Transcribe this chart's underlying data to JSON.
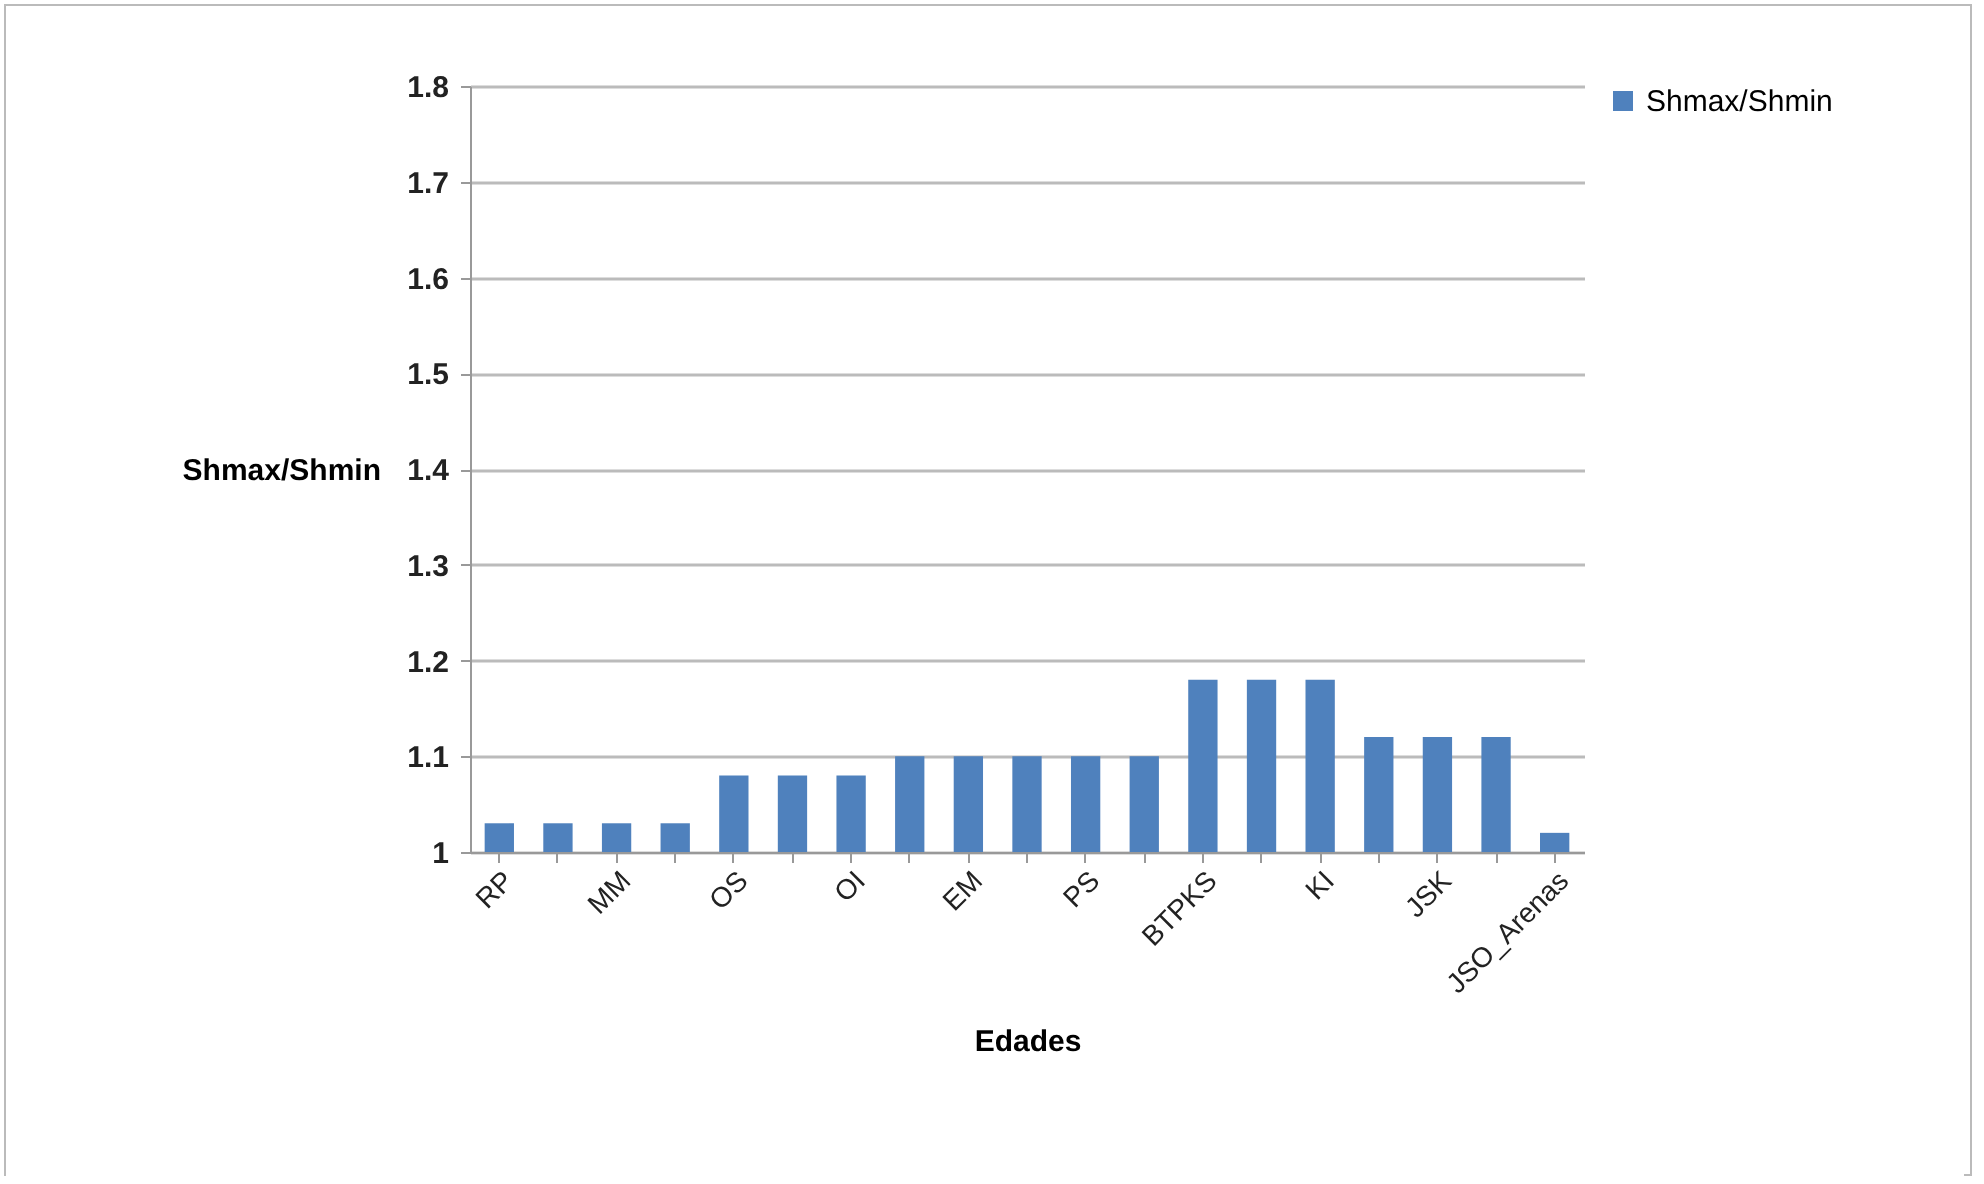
{
  "chart_data": {
    "type": "bar",
    "xlabel": "Edades",
    "ylabel": "Shmax/Shmin",
    "categories": [
      "RP",
      null,
      "MM",
      null,
      "OS",
      null,
      "OI",
      null,
      "EM",
      null,
      "PS",
      null,
      "BTPKS",
      null,
      "KI",
      null,
      "JSK",
      null,
      "JSO_Arenas"
    ],
    "series": [
      {
        "name": "Shmax/Shmin",
        "color": "#4f81bd",
        "values": [
          1.03,
          1.03,
          1.03,
          1.03,
          1.08,
          1.08,
          1.08,
          1.1,
          1.1,
          1.1,
          1.1,
          1.1,
          1.18,
          1.18,
          1.18,
          1.12,
          1.12,
          1.12,
          1.02
        ]
      }
    ],
    "ylim": [
      1,
      1.8
    ],
    "yticks": [
      {
        "value": 1,
        "label": "1"
      },
      1.1,
      1.2,
      1.3,
      1.4,
      1.5,
      1.6,
      1.7,
      1.8
    ],
    "grid": "y",
    "legend": "right"
  }
}
